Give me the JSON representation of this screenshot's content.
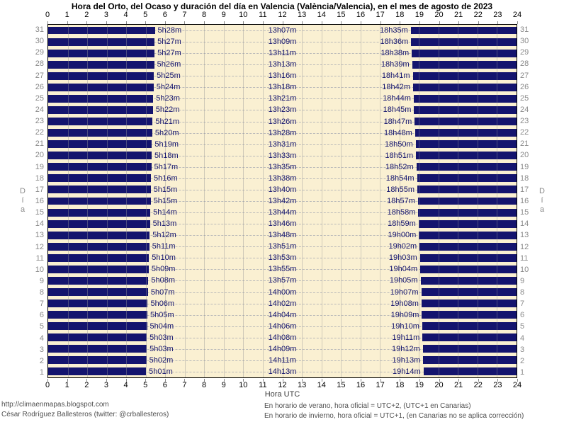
{
  "title": "Hora del Orto, del Ocaso y duración del día en Valencia (València/Valencia), en el mes de agosto de 2023",
  "axis": {
    "hour_ticks": [
      0,
      1,
      2,
      3,
      4,
      5,
      6,
      7,
      8,
      9,
      10,
      11,
      12,
      13,
      14,
      15,
      16,
      17,
      18,
      19,
      20,
      21,
      22,
      23,
      24
    ],
    "x_label": "Hora UTC",
    "y_label": "Día",
    "day_ticks_top_to_bottom": [
      31,
      30,
      29,
      28,
      27,
      26,
      25,
      24,
      23,
      22,
      21,
      20,
      19,
      18,
      17,
      16,
      15,
      14,
      13,
      12,
      11,
      10,
      9,
      8,
      7,
      6,
      5,
      4,
      3,
      2,
      1
    ]
  },
  "footer": {
    "url": "http://climaenmapas.blogspot.com",
    "author": "César Rodríguez Ballesteros (twitter: @crballesteros)",
    "note_summer": "En horario de verano, hora oficial = UTC+2, (UTC+1 en Canarias)",
    "note_winter": "En horario de invierno, hora oficial = UTC+1, (en Canarias no se aplica corrección)"
  },
  "colors": {
    "night_bar": "#14146E",
    "label_text": "#14146E",
    "day_background": "#FAF0D2",
    "grid": "#B9B9B9",
    "axis_gray": "#8A8A8A",
    "border": "#000000"
  },
  "chart_data": {
    "type": "bar",
    "subtype": "horizontal-day-night-span",
    "title": "Hora del Orto, del Ocaso y duración del día en Valencia (València/Valencia), en el mes de agosto de 2023",
    "xlabel": "Hora UTC",
    "ylabel": "Día",
    "xlim": [
      0,
      24
    ],
    "grid": true,
    "description": "Navy bars = night (00:00→sunrise and sunset→24:00 UTC); cream gap = daylight. Rows are days of August 2023, day 31 at top, day 1 at bottom.",
    "days": [
      {
        "day": 1,
        "sunrise": "5h01m",
        "duration": "14h13m",
        "sunset": "19h14m"
      },
      {
        "day": 2,
        "sunrise": "5h02m",
        "duration": "14h11m",
        "sunset": "19h13m"
      },
      {
        "day": 3,
        "sunrise": "5h03m",
        "duration": "14h09m",
        "sunset": "19h12m"
      },
      {
        "day": 4,
        "sunrise": "5h03m",
        "duration": "14h08m",
        "sunset": "19h11m"
      },
      {
        "day": 5,
        "sunrise": "5h04m",
        "duration": "14h06m",
        "sunset": "19h10m"
      },
      {
        "day": 6,
        "sunrise": "5h05m",
        "duration": "14h04m",
        "sunset": "19h09m"
      },
      {
        "day": 7,
        "sunrise": "5h06m",
        "duration": "14h02m",
        "sunset": "19h08m"
      },
      {
        "day": 8,
        "sunrise": "5h07m",
        "duration": "14h00m",
        "sunset": "19h07m"
      },
      {
        "day": 9,
        "sunrise": "5h08m",
        "duration": "13h57m",
        "sunset": "19h05m"
      },
      {
        "day": 10,
        "sunrise": "5h09m",
        "duration": "13h55m",
        "sunset": "19h04m"
      },
      {
        "day": 11,
        "sunrise": "5h10m",
        "duration": "13h53m",
        "sunset": "19h03m"
      },
      {
        "day": 12,
        "sunrise": "5h11m",
        "duration": "13h51m",
        "sunset": "19h02m"
      },
      {
        "day": 13,
        "sunrise": "5h12m",
        "duration": "13h48m",
        "sunset": "19h00m"
      },
      {
        "day": 14,
        "sunrise": "5h13m",
        "duration": "13h46m",
        "sunset": "18h59m"
      },
      {
        "day": 15,
        "sunrise": "5h14m",
        "duration": "13h44m",
        "sunset": "18h58m"
      },
      {
        "day": 16,
        "sunrise": "5h15m",
        "duration": "13h42m",
        "sunset": "18h57m"
      },
      {
        "day": 17,
        "sunrise": "5h15m",
        "duration": "13h40m",
        "sunset": "18h55m"
      },
      {
        "day": 18,
        "sunrise": "5h16m",
        "duration": "13h38m",
        "sunset": "18h54m"
      },
      {
        "day": 19,
        "sunrise": "5h17m",
        "duration": "13h35m",
        "sunset": "18h52m"
      },
      {
        "day": 20,
        "sunrise": "5h18m",
        "duration": "13h33m",
        "sunset": "18h51m"
      },
      {
        "day": 21,
        "sunrise": "5h19m",
        "duration": "13h31m",
        "sunset": "18h50m"
      },
      {
        "day": 22,
        "sunrise": "5h20m",
        "duration": "13h28m",
        "sunset": "18h48m"
      },
      {
        "day": 23,
        "sunrise": "5h21m",
        "duration": "13h26m",
        "sunset": "18h47m"
      },
      {
        "day": 24,
        "sunrise": "5h22m",
        "duration": "13h23m",
        "sunset": "18h45m"
      },
      {
        "day": 25,
        "sunrise": "5h23m",
        "duration": "13h21m",
        "sunset": "18h44m"
      },
      {
        "day": 26,
        "sunrise": "5h24m",
        "duration": "13h18m",
        "sunset": "18h42m"
      },
      {
        "day": 27,
        "sunrise": "5h25m",
        "duration": "13h16m",
        "sunset": "18h41m"
      },
      {
        "day": 28,
        "sunrise": "5h26m",
        "duration": "13h13m",
        "sunset": "18h39m"
      },
      {
        "day": 29,
        "sunrise": "5h27m",
        "duration": "13h11m",
        "sunset": "18h38m"
      },
      {
        "day": 30,
        "sunrise": "5h27m",
        "duration": "13h09m",
        "sunset": "18h36m"
      },
      {
        "day": 31,
        "sunrise": "5h28m",
        "duration": "13h07m",
        "sunset": "18h35m"
      }
    ]
  }
}
